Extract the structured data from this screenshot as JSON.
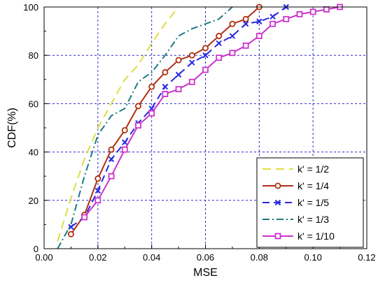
{
  "chart_data": {
    "type": "line",
    "title": "",
    "xlabel": "MSE",
    "ylabel": "CDF(%)",
    "xlim": [
      0.0,
      0.12
    ],
    "ylim": [
      0,
      100
    ],
    "xticks": [
      "0.00",
      "0.02",
      "0.04",
      "0.06",
      "0.08",
      "0.10",
      "0.12"
    ],
    "yticks": [
      "0",
      "20",
      "40",
      "60",
      "80",
      "100"
    ],
    "grid": "on",
    "legend_position": "lower-right",
    "series": [
      {
        "name": "k' = 1/2",
        "color": "#dede44",
        "dash": "long-dash",
        "marker": "none",
        "x": [
          0.005,
          0.01,
          0.015,
          0.02,
          0.025,
          0.03,
          0.035,
          0.04,
          0.045,
          0.05
        ],
        "y": [
          3,
          21,
          37,
          50,
          60,
          70,
          76,
          85,
          93,
          100
        ]
      },
      {
        "name": "k' = 1/4",
        "color": "#b03010",
        "dash": "solid",
        "marker": "circle",
        "x": [
          0.01,
          0.015,
          0.02,
          0.025,
          0.03,
          0.035,
          0.04,
          0.045,
          0.05,
          0.055,
          0.06,
          0.065,
          0.07,
          0.075,
          0.08
        ],
        "y": [
          6,
          14,
          29,
          41,
          49,
          59,
          67,
          73,
          78,
          80,
          83,
          88,
          93,
          95,
          100
        ]
      },
      {
        "name": "k' = 1/5",
        "color": "#2a2ae0",
        "dash": "dash",
        "marker": "x",
        "x": [
          0.01,
          0.015,
          0.02,
          0.025,
          0.03,
          0.035,
          0.04,
          0.045,
          0.05,
          0.055,
          0.06,
          0.065,
          0.07,
          0.075,
          0.08,
          0.085,
          0.09
        ],
        "y": [
          9,
          13,
          24,
          37,
          44,
          52,
          58,
          67,
          72,
          77,
          80,
          85,
          88,
          93,
          94,
          96,
          100
        ]
      },
      {
        "name": "k' = 1/3",
        "color": "#1f7a82",
        "dash": "dash-dot",
        "marker": "none",
        "x": [
          0.005,
          0.01,
          0.015,
          0.02,
          0.025,
          0.03,
          0.035,
          0.04,
          0.045,
          0.05,
          0.055,
          0.06,
          0.065,
          0.07
        ],
        "y": [
          0,
          10,
          30,
          47,
          55,
          58,
          69,
          73,
          80,
          88,
          91,
          93,
          95,
          100
        ]
      },
      {
        "name": "k' = 1/10",
        "color": "#cc33cc",
        "dash": "solid",
        "marker": "square",
        "x": [
          0.015,
          0.02,
          0.025,
          0.03,
          0.035,
          0.04,
          0.045,
          0.05,
          0.055,
          0.06,
          0.065,
          0.07,
          0.075,
          0.08,
          0.085,
          0.09,
          0.095,
          0.1,
          0.105,
          0.11
        ],
        "y": [
          13,
          20,
          30,
          41,
          51,
          56,
          64,
          66,
          69,
          74,
          79,
          81,
          84,
          88,
          93,
          95,
          97,
          98,
          99,
          100
        ]
      }
    ]
  }
}
